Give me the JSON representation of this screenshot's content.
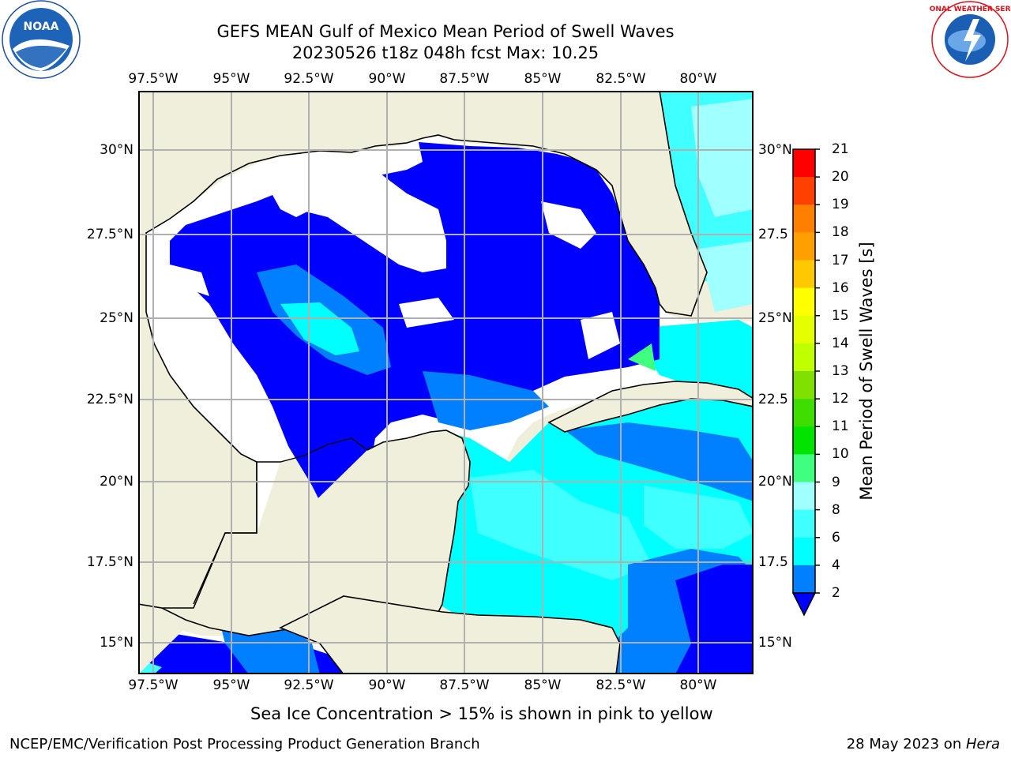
{
  "header": {
    "title_line1": "GEFS MEAN Gulf of Mexico Mean Period of Swell Waves",
    "title_line2": "20230526 t18z 048h fcst   Max: 10.25"
  },
  "logos": {
    "left": {
      "name": "noaa-logo",
      "text": "NOAA"
    },
    "right": {
      "name": "nws-logo",
      "text": "NATIONAL WEATHER SERVICE"
    }
  },
  "map": {
    "lon_labels": [
      "97.5°W",
      "95°W",
      "92.5°W",
      "90°W",
      "87.5°W",
      "85°W",
      "82.5°W",
      "80°W"
    ],
    "lat_labels_left": [
      "30°N",
      "27.5°N",
      "25°N",
      "22.5°N",
      "20°N",
      "17.5°N",
      "15°N"
    ],
    "lat_labels_right": [
      "30°N",
      "27.5",
      "25°N",
      "22.5",
      "20°N",
      "17.5",
      "15°N"
    ],
    "colors": {
      "land": "#efefdc",
      "coast": "#000000",
      "grid": "#b0b0b0",
      "no_data": "#ffffff"
    }
  },
  "colorbar": {
    "label": "Mean Period of Swell Waves [s]",
    "ticks": [
      "2",
      "4",
      "6",
      "8",
      "9",
      "10",
      "11",
      "12",
      "13",
      "14",
      "15",
      "16",
      "17",
      "18",
      "19",
      "20",
      "21"
    ],
    "colors": [
      "#0000ff",
      "#0080ff",
      "#00ffff",
      "#40ffff",
      "#a0ffff",
      "#40ff80",
      "#00e400",
      "#40dd00",
      "#80e000",
      "#c0ff00",
      "#e6ff00",
      "#ffff00",
      "#ffc800",
      "#ffa000",
      "#ff8000",
      "#ff4000",
      "#ff0000"
    ]
  },
  "caption": "Sea Ice Concentration > 15% is shown in pink to yellow",
  "footer": {
    "left": "NCEP/EMC/Verification Post Processing Product Generation Branch",
    "right_prefix": "28 May 2023 on ",
    "right_host": "Hera"
  }
}
